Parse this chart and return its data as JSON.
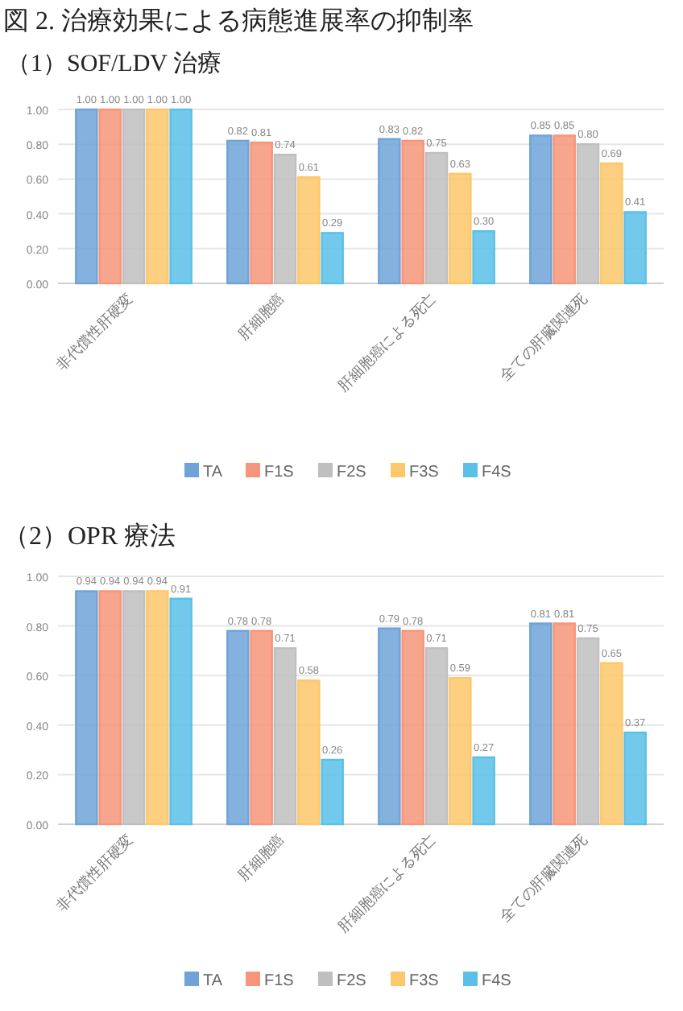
{
  "chart_data": [
    {
      "type": "bar",
      "title": "図 2. 治療効果による病態進展率の抑制率",
      "subtitle": "（1）SOF/LDV 治療",
      "categories": [
        "非代償性肝硬変",
        "肝細胞癌",
        "肝細胞癌による死亡",
        "全ての肝臓関連死"
      ],
      "series": [
        {
          "name": "TA",
          "color": "#6fa3d8",
          "values": [
            1.0,
            0.82,
            0.83,
            0.85
          ],
          "value_labels": [
            "1.00",
            "0.82",
            "0.83",
            "0.85"
          ]
        },
        {
          "name": "F1S",
          "color": "#f7957a",
          "values": [
            1.0,
            0.81,
            0.82,
            0.85
          ],
          "value_labels": [
            "1.00",
            "0.81",
            "0.82",
            "0.85"
          ]
        },
        {
          "name": "F2S",
          "color": "#bfbfbf",
          "values": [
            1.0,
            0.74,
            0.75,
            0.8
          ],
          "value_labels": [
            "1.00",
            "0.74",
            "0.75",
            "0.80"
          ]
        },
        {
          "name": "F3S",
          "color": "#fdc76b",
          "values": [
            1.0,
            0.61,
            0.63,
            0.69
          ],
          "value_labels": [
            "1.00",
            "0.61",
            "0.63",
            "0.69"
          ]
        },
        {
          "name": "F4S",
          "color": "#5bc0e8",
          "values": [
            1.0,
            0.29,
            0.3,
            0.41
          ],
          "value_labels": [
            "1.00",
            "0.29",
            "0.30",
            "0.41"
          ]
        }
      ],
      "ylim": [
        0,
        1
      ],
      "yticks": [
        {
          "value": 0,
          "label": "0.00"
        },
        {
          "value": 0.2,
          "label": "0.20"
        },
        {
          "value": 0.4,
          "label": "0.40"
        },
        {
          "value": 0.6,
          "label": "0.60"
        },
        {
          "value": 0.8,
          "label": "0.80"
        },
        {
          "value": 1,
          "label": "1.00"
        }
      ],
      "grid": "y",
      "legend": "bottom"
    },
    {
      "type": "bar",
      "title": "（2）OPR 療法",
      "categories": [
        "非代償性肝硬変",
        "肝細胞癌",
        "肝細胞癌による死亡",
        "全ての肝臓関連死"
      ],
      "series": [
        {
          "name": "TA",
          "color": "#6fa3d8",
          "values": [
            0.94,
            0.78,
            0.79,
            0.81
          ]
        },
        {
          "name": "F1S",
          "color": "#f7957a",
          "values": [
            0.94,
            0.78,
            0.78,
            0.81
          ]
        },
        {
          "name": "F2S",
          "color": "#bfbfbf",
          "values": [
            0.94,
            0.71,
            0.71,
            0.75
          ]
        },
        {
          "name": "F3S",
          "color": "#fdc76b",
          "values": [
            0.94,
            0.58,
            0.59,
            0.65
          ]
        },
        {
          "name": "F4S",
          "color": "#5bc0e8",
          "values": [
            0.91,
            0.26,
            0.27,
            0.37
          ]
        }
      ],
      "ylim": [
        0,
        1
      ],
      "yticks": [
        {
          "value": 0,
          "label": "0.00"
        },
        {
          "value": 0.2,
          "label": "0.20"
        },
        {
          "value": 0.4,
          "label": "0.40"
        },
        {
          "value": 0.6,
          "label": "0.60"
        },
        {
          "value": 0.8,
          "label": "0.80"
        },
        {
          "value": 1,
          "label": "1.00"
        }
      ],
      "grid": "y",
      "legend": "bottom",
      "data_labels": true
    }
  ]
}
